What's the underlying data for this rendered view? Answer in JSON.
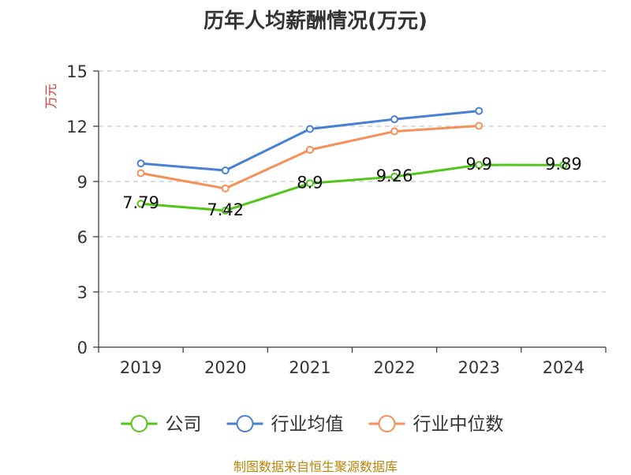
{
  "chart_data": {
    "type": "line",
    "title": "历年人均薪酬情况(万元)",
    "ylabel": "万元",
    "xlabel": "",
    "categories": [
      "2019",
      "2020",
      "2021",
      "2022",
      "2023",
      "2024"
    ],
    "ylim": [
      0,
      15
    ],
    "yticks": [
      0,
      3,
      6,
      9,
      12,
      15
    ],
    "grid": true,
    "legend_position": "bottom",
    "series": [
      {
        "name": "公司",
        "color": "#52c41a",
        "values": [
          7.79,
          7.42,
          8.9,
          9.26,
          9.9,
          9.89
        ],
        "labels": [
          "7.79",
          "7.42",
          "8.9",
          "9.26",
          "9.9",
          "9.89"
        ]
      },
      {
        "name": "行业均值",
        "color": "#4a7fd6",
        "values": [
          9.98,
          9.6,
          11.85,
          12.38,
          12.83,
          null
        ]
      },
      {
        "name": "行业中位数",
        "color": "#f59058",
        "values": [
          9.45,
          8.62,
          10.72,
          11.72,
          12.02,
          null
        ]
      }
    ]
  },
  "footer": {
    "source": "制图数据来自恒生聚源数据库"
  }
}
